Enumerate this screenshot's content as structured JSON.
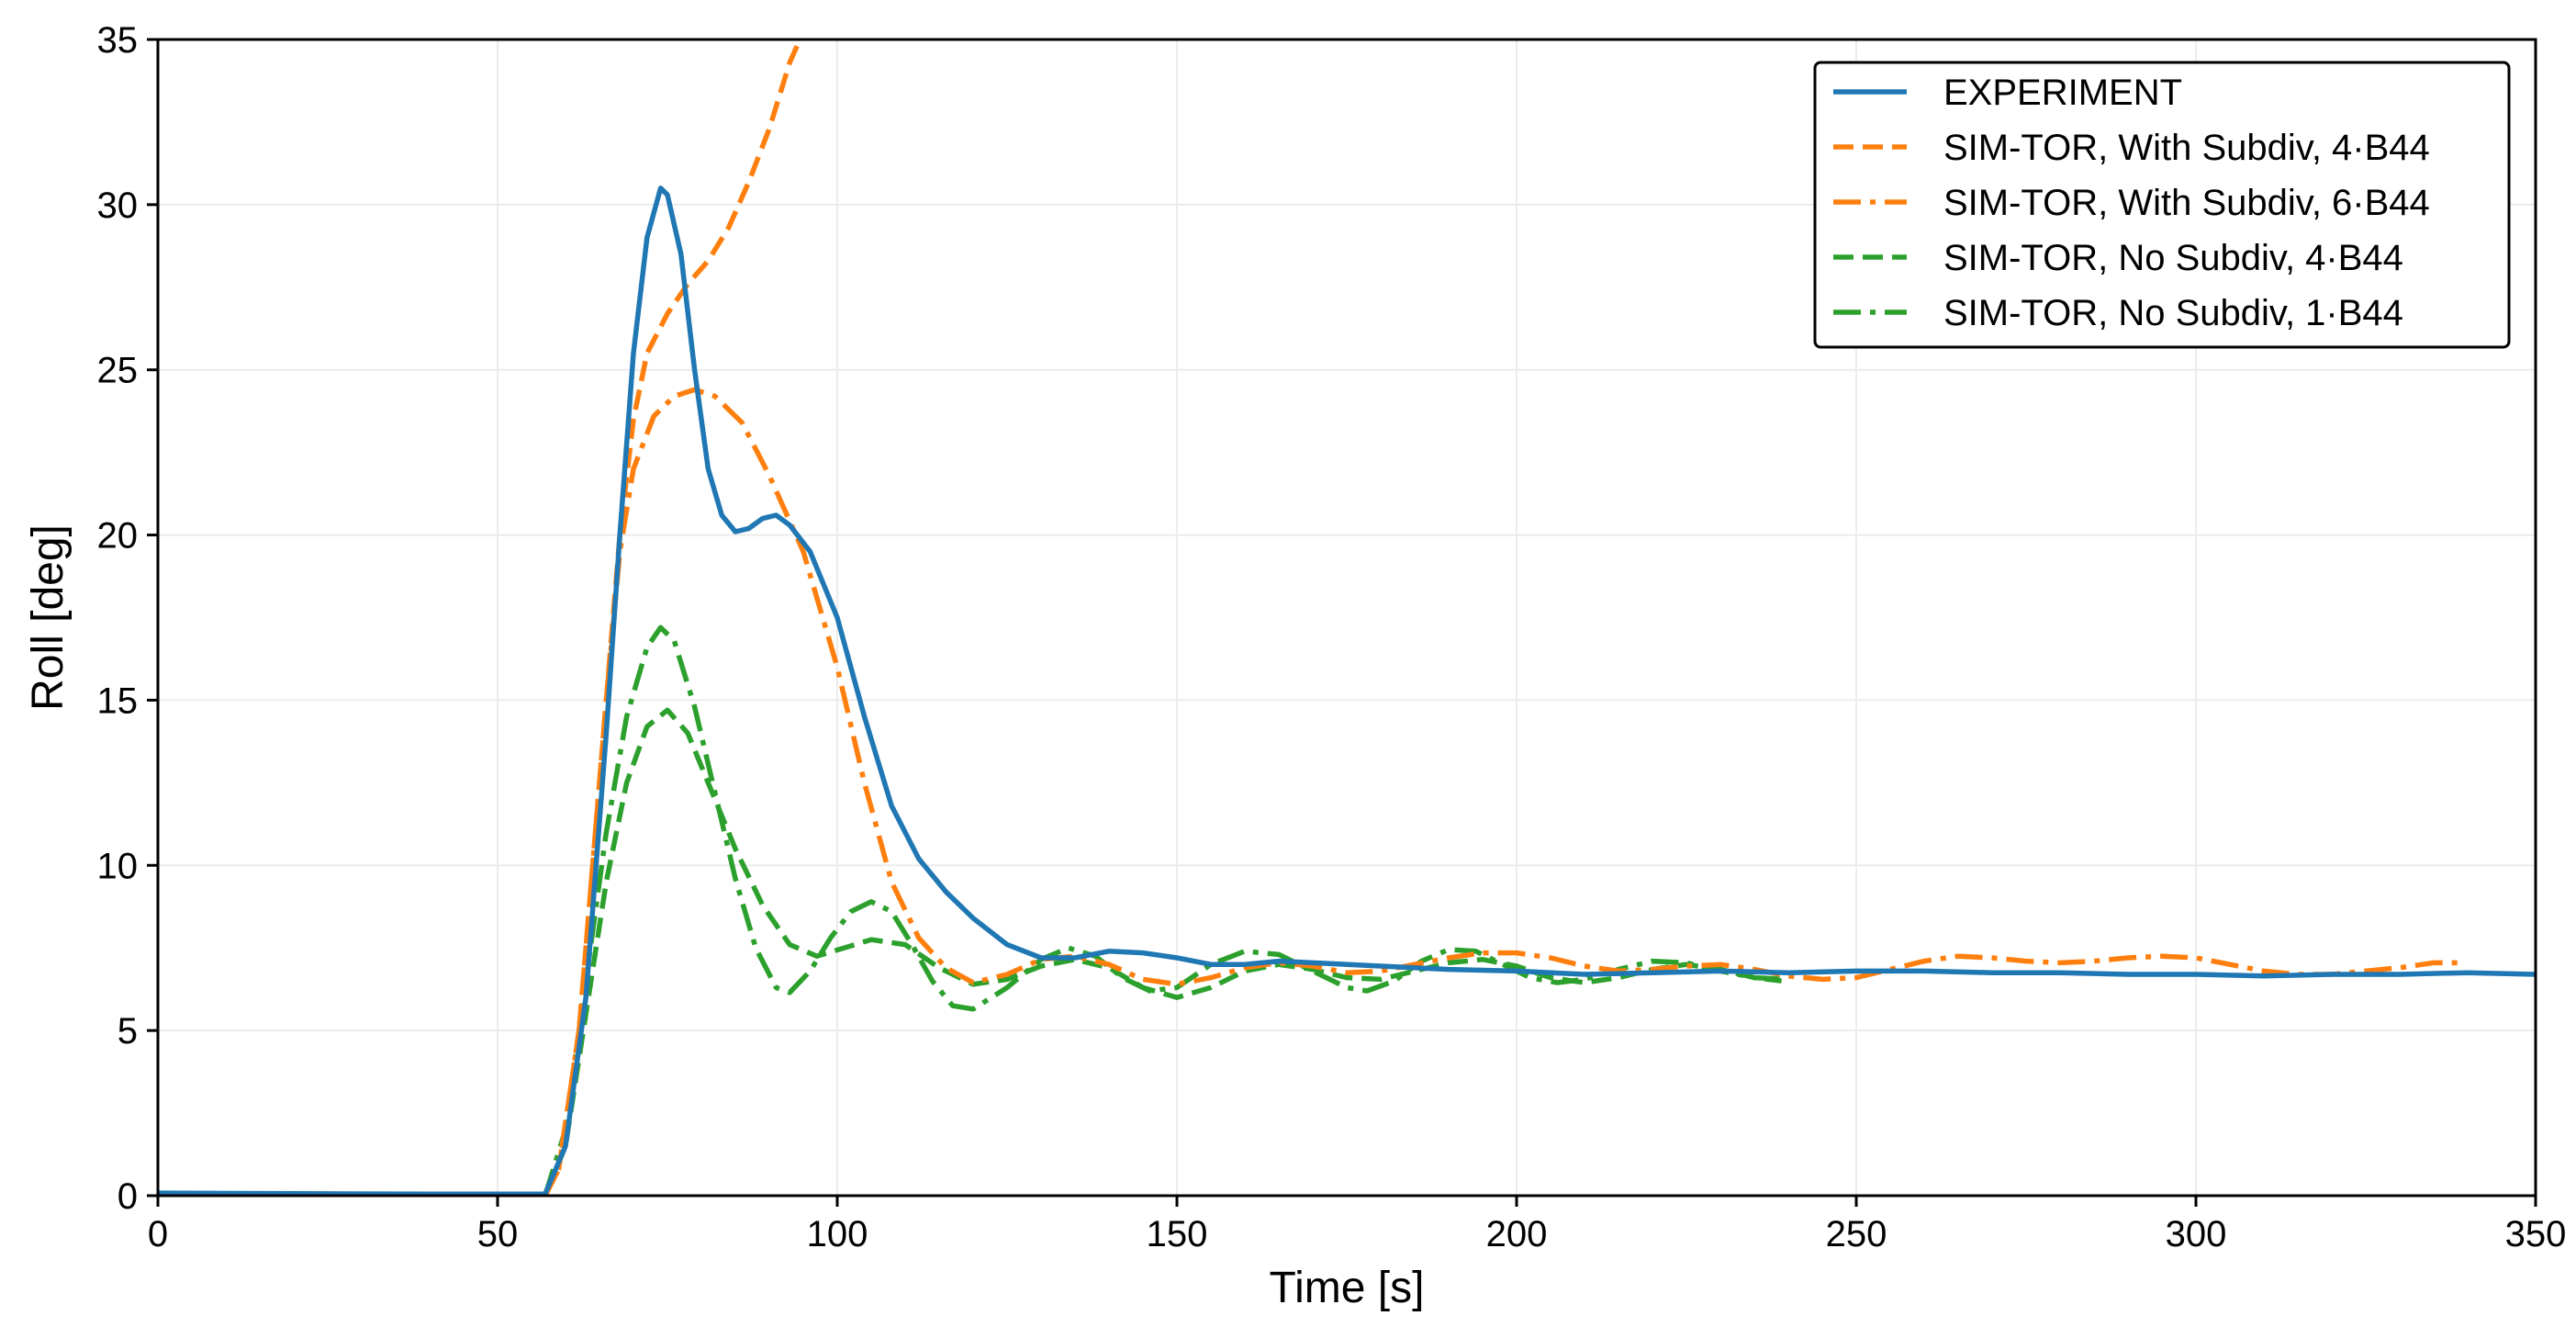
{
  "chart_data": {
    "type": "line",
    "xlabel": "Time [s]",
    "ylabel": "Roll [deg]",
    "xlim": [
      0,
      350
    ],
    "ylim": [
      0,
      35
    ],
    "x_ticks": [
      "0",
      "50",
      "100",
      "150",
      "200",
      "250",
      "300",
      "350"
    ],
    "y_ticks": [
      "0",
      "5",
      "10",
      "15",
      "20",
      "25",
      "30",
      "35"
    ],
    "grid": true,
    "legend_position": "top-right",
    "colors": {
      "blue": "#1f77b4",
      "orange": "#ff7f0e",
      "green": "#2ca02c"
    },
    "series": [
      {
        "name": "EXPERIMENT",
        "color": "#1f77b4",
        "style": "solid",
        "points": [
          [
            0,
            0.08
          ],
          [
            20,
            0.06
          ],
          [
            40,
            0.05
          ],
          [
            50,
            0.05
          ],
          [
            57,
            0.05
          ],
          [
            60,
            1.5
          ],
          [
            63,
            6
          ],
          [
            66,
            14
          ],
          [
            68,
            20
          ],
          [
            70,
            25.5
          ],
          [
            72,
            29
          ],
          [
            74,
            30.5
          ],
          [
            75,
            30.3
          ],
          [
            77,
            28.5
          ],
          [
            79,
            25
          ],
          [
            81,
            22
          ],
          [
            83,
            20.6
          ],
          [
            85,
            20.1
          ],
          [
            87,
            20.2
          ],
          [
            89,
            20.5
          ],
          [
            91,
            20.6
          ],
          [
            93,
            20.3
          ],
          [
            96,
            19.5
          ],
          [
            100,
            17.5
          ],
          [
            104,
            14.5
          ],
          [
            108,
            11.8
          ],
          [
            112,
            10.2
          ],
          [
            116,
            9.2
          ],
          [
            120,
            8.4
          ],
          [
            125,
            7.6
          ],
          [
            130,
            7.2
          ],
          [
            135,
            7.2
          ],
          [
            140,
            7.4
          ],
          [
            145,
            7.35
          ],
          [
            150,
            7.2
          ],
          [
            155,
            7.0
          ],
          [
            160,
            7.0
          ],
          [
            165,
            7.1
          ],
          [
            170,
            7.05
          ],
          [
            180,
            6.95
          ],
          [
            190,
            6.85
          ],
          [
            200,
            6.8
          ],
          [
            210,
            6.7
          ],
          [
            220,
            6.75
          ],
          [
            230,
            6.8
          ],
          [
            240,
            6.75
          ],
          [
            250,
            6.8
          ],
          [
            260,
            6.8
          ],
          [
            270,
            6.75
          ],
          [
            280,
            6.75
          ],
          [
            290,
            6.7
          ],
          [
            300,
            6.7
          ],
          [
            310,
            6.65
          ],
          [
            320,
            6.7
          ],
          [
            330,
            6.7
          ],
          [
            340,
            6.75
          ],
          [
            350,
            6.7
          ]
        ]
      },
      {
        "name": "SIM-TOR, With Subdiv, 4·B44",
        "color": "#ff7f0e",
        "style": "dashed",
        "points": [
          [
            57,
            0
          ],
          [
            59,
            0.8
          ],
          [
            62,
            5
          ],
          [
            64,
            10
          ],
          [
            66,
            15
          ],
          [
            68,
            20
          ],
          [
            70,
            23.5
          ],
          [
            72,
            25.5
          ],
          [
            75,
            26.7
          ],
          [
            78,
            27.6
          ],
          [
            81,
            28.3
          ],
          [
            84,
            29.3
          ],
          [
            87,
            30.7
          ],
          [
            90,
            32.3
          ],
          [
            93,
            34.3
          ],
          [
            94.5,
            35
          ]
        ]
      },
      {
        "name": "SIM-TOR, With Subdiv, 6·B44",
        "color": "#ff7f0e",
        "style": "dashdot",
        "points": [
          [
            57,
            0
          ],
          [
            59,
            0.8
          ],
          [
            62,
            5
          ],
          [
            64,
            10
          ],
          [
            66,
            15
          ],
          [
            68,
            19.5
          ],
          [
            70,
            22
          ],
          [
            73,
            23.6
          ],
          [
            76,
            24.2
          ],
          [
            79,
            24.4
          ],
          [
            82,
            24.2
          ],
          [
            86,
            23.4
          ],
          [
            90,
            21.8
          ],
          [
            95,
            19.5
          ],
          [
            100,
            16
          ],
          [
            104,
            12.5
          ],
          [
            108,
            9.5
          ],
          [
            112,
            7.8
          ],
          [
            116,
            6.9
          ],
          [
            120,
            6.45
          ],
          [
            125,
            6.7
          ],
          [
            130,
            7.15
          ],
          [
            135,
            7.25
          ],
          [
            140,
            7.0
          ],
          [
            145,
            6.55
          ],
          [
            150,
            6.4
          ],
          [
            155,
            6.6
          ],
          [
            160,
            6.9
          ],
          [
            165,
            7.05
          ],
          [
            170,
            6.95
          ],
          [
            175,
            6.75
          ],
          [
            180,
            6.8
          ],
          [
            185,
            7.0
          ],
          [
            190,
            7.2
          ],
          [
            195,
            7.35
          ],
          [
            200,
            7.35
          ],
          [
            205,
            7.2
          ],
          [
            210,
            6.95
          ],
          [
            215,
            6.8
          ],
          [
            220,
            6.85
          ],
          [
            225,
            6.95
          ],
          [
            230,
            7.0
          ],
          [
            235,
            6.85
          ],
          [
            240,
            6.65
          ],
          [
            245,
            6.55
          ],
          [
            250,
            6.6
          ],
          [
            255,
            6.85
          ],
          [
            260,
            7.1
          ],
          [
            265,
            7.25
          ],
          [
            270,
            7.2
          ],
          [
            275,
            7.1
          ],
          [
            280,
            7.05
          ],
          [
            285,
            7.1
          ],
          [
            290,
            7.2
          ],
          [
            295,
            7.25
          ],
          [
            300,
            7.2
          ],
          [
            305,
            7.0
          ],
          [
            310,
            6.8
          ],
          [
            315,
            6.7
          ],
          [
            320,
            6.7
          ],
          [
            325,
            6.8
          ],
          [
            330,
            6.9
          ],
          [
            335,
            7.05
          ],
          [
            339,
            7.05
          ]
        ]
      },
      {
        "name": "SIM-TOR, No Subdiv, 4·B44",
        "color": "#2ca02c",
        "style": "dashed",
        "points": [
          [
            57,
            0
          ],
          [
            60,
            1.5
          ],
          [
            63,
            5.5
          ],
          [
            66,
            9.5
          ],
          [
            69,
            12.5
          ],
          [
            72,
            14.2
          ],
          [
            75,
            14.7
          ],
          [
            78,
            14.0
          ],
          [
            81,
            12.5
          ],
          [
            85,
            10.5
          ],
          [
            89,
            8.8
          ],
          [
            93,
            7.6
          ],
          [
            97,
            7.25
          ],
          [
            101,
            7.5
          ],
          [
            105,
            7.75
          ],
          [
            110,
            7.6
          ],
          [
            115,
            6.9
          ],
          [
            120,
            6.4
          ],
          [
            125,
            6.55
          ],
          [
            130,
            6.95
          ],
          [
            135,
            7.15
          ],
          [
            140,
            6.9
          ],
          [
            145,
            6.3
          ],
          [
            150,
            6.0
          ],
          [
            155,
            6.3
          ],
          [
            160,
            6.8
          ],
          [
            165,
            7.0
          ],
          [
            170,
            6.85
          ],
          [
            175,
            6.6
          ],
          [
            180,
            6.55
          ],
          [
            185,
            6.8
          ],
          [
            190,
            7.05
          ],
          [
            195,
            7.15
          ],
          [
            200,
            6.95
          ],
          [
            205,
            6.6
          ],
          [
            210,
            6.45
          ],
          [
            215,
            6.6
          ],
          [
            220,
            6.85
          ],
          [
            225,
            7.0
          ],
          [
            230,
            6.85
          ],
          [
            235,
            6.6
          ],
          [
            239,
            6.5
          ]
        ]
      },
      {
        "name": "SIM-TOR, No Subdiv, 1·B44",
        "color": "#2ca02c",
        "style": "dashdot",
        "points": [
          [
            57,
            0
          ],
          [
            60,
            2
          ],
          [
            63,
            6.5
          ],
          [
            66,
            11
          ],
          [
            69,
            14.5
          ],
          [
            72,
            16.6
          ],
          [
            74,
            17.2
          ],
          [
            76,
            16.8
          ],
          [
            79,
            14.8
          ],
          [
            82,
            12.2
          ],
          [
            85,
            9.6
          ],
          [
            88,
            7.5
          ],
          [
            91,
            6.3
          ],
          [
            93,
            6.15
          ],
          [
            96,
            6.8
          ],
          [
            99,
            7.8
          ],
          [
            102,
            8.6
          ],
          [
            105,
            8.9
          ],
          [
            108,
            8.6
          ],
          [
            111,
            7.6
          ],
          [
            114,
            6.5
          ],
          [
            117,
            5.75
          ],
          [
            120,
            5.65
          ],
          [
            125,
            6.3
          ],
          [
            130,
            7.15
          ],
          [
            134,
            7.5
          ],
          [
            138,
            7.25
          ],
          [
            142,
            6.6
          ],
          [
            146,
            6.2
          ],
          [
            150,
            6.3
          ],
          [
            155,
            7.0
          ],
          [
            160,
            7.4
          ],
          [
            165,
            7.3
          ],
          [
            170,
            6.8
          ],
          [
            175,
            6.3
          ],
          [
            178,
            6.2
          ],
          [
            182,
            6.5
          ],
          [
            186,
            7.1
          ],
          [
            190,
            7.45
          ],
          [
            194,
            7.4
          ],
          [
            198,
            7.0
          ],
          [
            202,
            6.6
          ],
          [
            206,
            6.45
          ],
          [
            210,
            6.55
          ],
          [
            215,
            6.85
          ],
          [
            220,
            7.1
          ],
          [
            225,
            7.05
          ],
          [
            230,
            6.8
          ],
          [
            235,
            6.6
          ],
          [
            240,
            6.55
          ]
        ]
      }
    ]
  }
}
